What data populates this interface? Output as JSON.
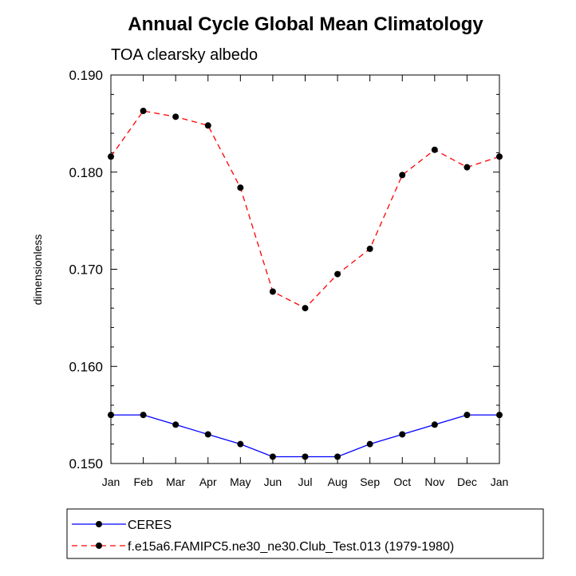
{
  "chart_data": {
    "type": "line",
    "title": "Annual Cycle Global Mean Climatology",
    "subtitle": "TOA clearsky albedo",
    "xlabel": "",
    "ylabel": "dimensionless",
    "categories": [
      "Jan",
      "Feb",
      "Mar",
      "Apr",
      "May",
      "Jun",
      "Jul",
      "Aug",
      "Sep",
      "Oct",
      "Nov",
      "Dec",
      "Jan"
    ],
    "ylim": [
      0.15,
      0.19
    ],
    "yticks": [
      0.15,
      0.16,
      0.17,
      0.18,
      0.19
    ],
    "ytick_labels": [
      "0.150",
      "0.160",
      "0.170",
      "0.180",
      "0.190"
    ],
    "grid": false,
    "legend_position": "bottom",
    "series": [
      {
        "name": "CERES",
        "color": "#0000ff",
        "line_style": "solid",
        "marker": "filled-circle",
        "values": [
          0.155,
          0.155,
          0.154,
          0.153,
          0.152,
          0.1507,
          0.1507,
          0.1507,
          0.152,
          0.153,
          0.154,
          0.155,
          0.155
        ]
      },
      {
        "name": "f.e15a6.FAMIPC5.ne30_ne30.Club_Test.013 (1979-1980)",
        "color": "#ff0000",
        "line_style": "dashed",
        "marker": "filled-circle",
        "values": [
          0.1816,
          0.1863,
          0.1857,
          0.1848,
          0.1784,
          0.1677,
          0.166,
          0.1695,
          0.1721,
          0.1797,
          0.1823,
          0.1805,
          0.1816
        ]
      }
    ]
  }
}
